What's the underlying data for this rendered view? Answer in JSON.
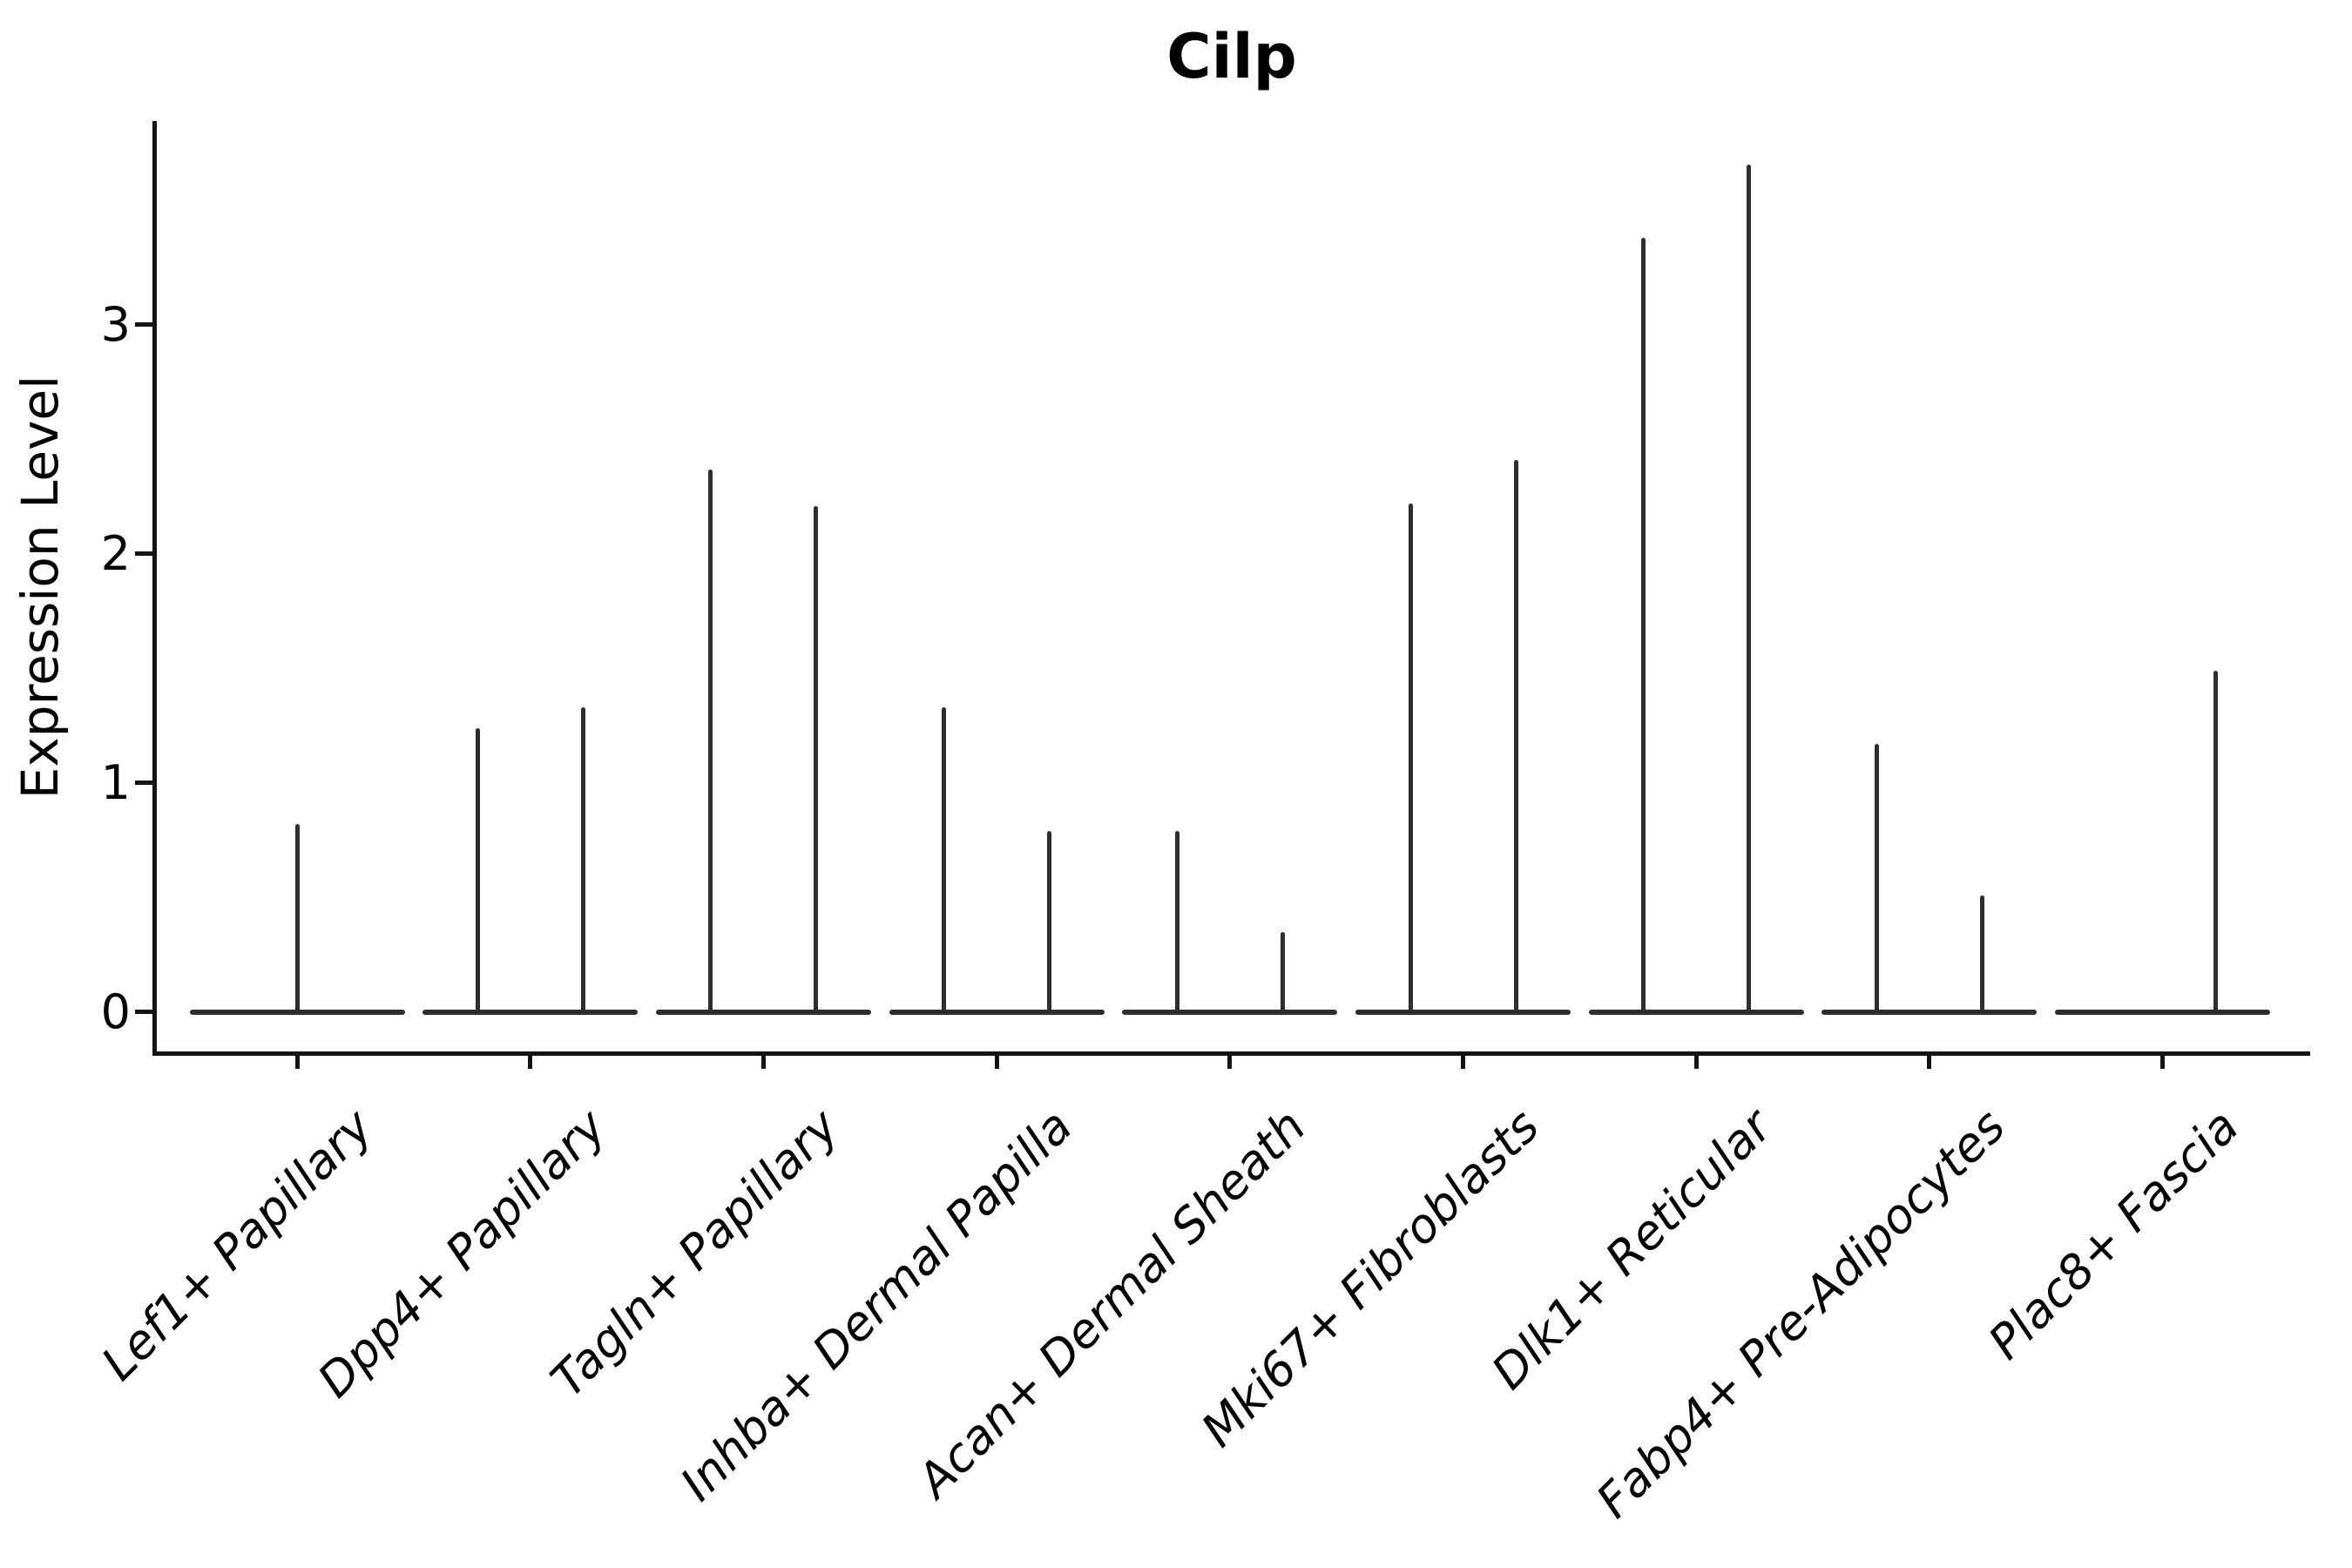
{
  "title": "Cilp",
  "colors": {
    "background": "#ffffff",
    "axis": "#141414",
    "violin_line": "#2e2e2e",
    "text": "#000000"
  },
  "chart_data": {
    "type": "violin",
    "title": "Cilp",
    "xlabel": "",
    "ylabel": "Expression Level",
    "ylim": [
      -0.18,
      3.89
    ],
    "yticks": [
      0,
      1,
      2,
      3
    ],
    "grid": false,
    "legend": "none",
    "x_tick_rotation_deg": 45,
    "description": "Violin plot of Cilp expression per fibroblast cluster; nearly all mass at 0 (flat baseline) with thin density spikes rising to the maximum expressed value of each group (two side-by-side violins in most clusters).",
    "categories": [
      "Lef1+ Papillary",
      "Dpp4+ Papillary",
      "Tagln+ Papillary",
      "Inhba+ Dermal Papilla",
      "Acan+ Dermal Sheath",
      "Mki67+ Fibroblasts",
      "Dlk1+ Reticular",
      "Fabp4+ Pre-Adipocytes",
      "Plac8+ Fascia"
    ],
    "series": [
      {
        "category": "Lef1+ Papillary",
        "violins": [
          {
            "side": "center",
            "baseline_value": 0,
            "max_expression": 0.82
          }
        ]
      },
      {
        "category": "Dpp4+ Papillary",
        "violins": [
          {
            "side": "left",
            "baseline_value": 0,
            "max_expression": 1.24
          },
          {
            "side": "right",
            "baseline_value": 0,
            "max_expression": 1.33
          }
        ]
      },
      {
        "category": "Tagln+ Papillary",
        "violins": [
          {
            "side": "left",
            "baseline_value": 0,
            "max_expression": 2.37
          },
          {
            "side": "right",
            "baseline_value": 0,
            "max_expression": 2.21
          }
        ]
      },
      {
        "category": "Inhba+ Dermal Papilla",
        "violins": [
          {
            "side": "left",
            "baseline_value": 0,
            "max_expression": 1.33
          },
          {
            "side": "right",
            "baseline_value": 0,
            "max_expression": 0.79
          }
        ]
      },
      {
        "category": "Acan+ Dermal Sheath",
        "violins": [
          {
            "side": "left",
            "baseline_value": 0,
            "max_expression": 0.79
          },
          {
            "side": "right",
            "baseline_value": 0,
            "max_expression": 0.35
          }
        ]
      },
      {
        "category": "Mki67+ Fibroblasts",
        "violins": [
          {
            "side": "left",
            "baseline_value": 0,
            "max_expression": 2.22
          },
          {
            "side": "right",
            "baseline_value": 0,
            "max_expression": 2.41
          }
        ]
      },
      {
        "category": "Dlk1+ Reticular",
        "violins": [
          {
            "side": "left",
            "baseline_value": 0,
            "max_expression": 3.38
          },
          {
            "side": "right",
            "baseline_value": 0,
            "max_expression": 3.7
          }
        ]
      },
      {
        "category": "Fabp4+ Pre-Adipocytes",
        "violins": [
          {
            "side": "left",
            "baseline_value": 0,
            "max_expression": 1.17
          },
          {
            "side": "right",
            "baseline_value": 0,
            "max_expression": 0.51
          }
        ]
      },
      {
        "category": "Plac8+ Fascia",
        "violins": [
          {
            "side": "right",
            "baseline_value": 0,
            "max_expression": 1.49
          }
        ]
      }
    ]
  }
}
